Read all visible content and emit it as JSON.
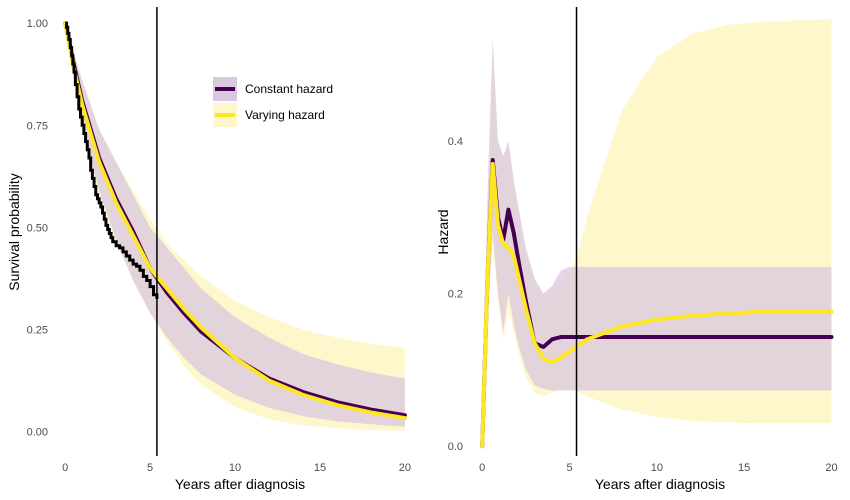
{
  "chart_data": [
    {
      "type": "line",
      "panel": "left",
      "xlabel": "Years after diagnosis",
      "ylabel": "Survival probability",
      "xlim": [
        -0.6,
        20.3
      ],
      "ylim": [
        -0.045,
        1.02
      ],
      "x_ticks": [
        0,
        5,
        10,
        15,
        20
      ],
      "x_tick_labels": [
        "0",
        "5",
        "10",
        "15",
        "20"
      ],
      "y_ticks": [
        0,
        0.25,
        0.5,
        0.75,
        1.0
      ],
      "y_tick_labels": [
        "0.00",
        "0.25",
        "0.50",
        "0.75",
        "1.00"
      ],
      "vline_x": 5.4,
      "grid": false,
      "legend": {
        "position": "top-right",
        "entries": [
          {
            "label": "Constant hazard",
            "color": "#440154",
            "fill": "#d9c8e0"
          },
          {
            "label": "Varying hazard",
            "color": "#fde725",
            "fill": "#fff7cc"
          }
        ]
      },
      "series": [
        {
          "name": "Constant hazard",
          "color": "#440154",
          "band_fill": "#d9c8e0",
          "x": [
            0,
            0.5,
            1,
            1.5,
            2,
            3,
            4,
            5,
            6,
            7,
            8,
            10,
            12,
            14,
            16,
            18,
            20
          ],
          "y": [
            1.0,
            0.9,
            0.81,
            0.74,
            0.67,
            0.57,
            0.49,
            0.4,
            0.34,
            0.29,
            0.245,
            0.18,
            0.13,
            0.097,
            0.072,
            0.054,
            0.04
          ],
          "lower": [
            1.0,
            0.87,
            0.76,
            0.67,
            0.59,
            0.47,
            0.37,
            0.29,
            0.23,
            0.18,
            0.14,
            0.09,
            0.058,
            0.038,
            0.025,
            0.018,
            0.012
          ],
          "upper": [
            1.0,
            0.93,
            0.86,
            0.8,
            0.74,
            0.66,
            0.58,
            0.5,
            0.45,
            0.4,
            0.35,
            0.28,
            0.23,
            0.19,
            0.165,
            0.145,
            0.13
          ]
        },
        {
          "name": "Varying hazard",
          "color": "#fde725",
          "band_fill": "#fff7cc",
          "x": [
            0,
            0.5,
            1,
            1.5,
            2,
            3,
            4,
            5,
            6,
            7,
            8,
            10,
            12,
            14,
            16,
            18,
            20
          ],
          "y": [
            1.0,
            0.89,
            0.8,
            0.73,
            0.66,
            0.56,
            0.48,
            0.4,
            0.35,
            0.3,
            0.255,
            0.18,
            0.125,
            0.09,
            0.065,
            0.047,
            0.033
          ],
          "lower": [
            1.0,
            0.86,
            0.75,
            0.66,
            0.58,
            0.46,
            0.37,
            0.29,
            0.22,
            0.16,
            0.115,
            0.06,
            0.03,
            0.015,
            0.008,
            0.004,
            0.002
          ],
          "upper": [
            1.0,
            0.93,
            0.86,
            0.8,
            0.74,
            0.66,
            0.59,
            0.52,
            0.46,
            0.42,
            0.38,
            0.32,
            0.28,
            0.25,
            0.23,
            0.215,
            0.205
          ]
        }
      ],
      "km_curve": {
        "color": "#000000",
        "x": [
          0,
          0.08,
          0.15,
          0.22,
          0.3,
          0.38,
          0.45,
          0.52,
          0.6,
          0.7,
          0.8,
          0.9,
          1.0,
          1.1,
          1.2,
          1.3,
          1.4,
          1.5,
          1.6,
          1.7,
          1.8,
          1.9,
          2.0,
          2.1,
          2.2,
          2.3,
          2.4,
          2.5,
          2.6,
          2.7,
          2.8,
          3.0,
          3.2,
          3.4,
          3.6,
          3.8,
          4.0,
          4.2,
          4.4,
          4.6,
          4.8,
          5.0,
          5.2,
          5.4
        ],
        "y": [
          1.0,
          0.99,
          0.975,
          0.96,
          0.94,
          0.92,
          0.9,
          0.88,
          0.85,
          0.82,
          0.79,
          0.77,
          0.75,
          0.73,
          0.71,
          0.69,
          0.67,
          0.64,
          0.62,
          0.6,
          0.58,
          0.57,
          0.56,
          0.55,
          0.535,
          0.52,
          0.505,
          0.495,
          0.485,
          0.475,
          0.465,
          0.455,
          0.45,
          0.44,
          0.43,
          0.42,
          0.41,
          0.405,
          0.395,
          0.38,
          0.37,
          0.355,
          0.335,
          0.325
        ]
      }
    },
    {
      "type": "line",
      "panel": "right",
      "xlabel": "Years after diagnosis",
      "ylabel": "Hazard",
      "xlim": [
        -0.7,
        20.2
      ],
      "ylim": [
        -0.005,
        0.565
      ],
      "x_ticks": [
        0,
        5,
        10,
        15,
        20
      ],
      "x_tick_labels": [
        "0",
        "5",
        "10",
        "15",
        "20"
      ],
      "y_ticks": [
        0.0,
        0.2,
        0.4
      ],
      "y_tick_labels": [
        "0.0",
        "0.2",
        "0.4"
      ],
      "vline_x": 5.4,
      "grid": false,
      "series": [
        {
          "name": "Constant hazard",
          "color": "#440154",
          "band_fill": "#d9c8e0",
          "x": [
            0,
            0.3,
            0.6,
            0.9,
            1.2,
            1.5,
            1.8,
            2.1,
            2.5,
            3.0,
            3.5,
            4.0,
            4.5,
            5.0,
            5.4,
            6,
            8,
            10,
            12,
            14,
            16,
            18,
            20
          ],
          "y": [
            0.0,
            0.22,
            0.375,
            0.3,
            0.27,
            0.31,
            0.28,
            0.24,
            0.19,
            0.135,
            0.13,
            0.14,
            0.143,
            0.143,
            0.143,
            0.143,
            0.143,
            0.143,
            0.143,
            0.143,
            0.143,
            0.143,
            0.143
          ],
          "lower": [
            0.0,
            0.17,
            0.28,
            0.2,
            0.15,
            0.2,
            0.16,
            0.13,
            0.1,
            0.08,
            0.075,
            0.073,
            0.073,
            0.073,
            0.073,
            0.073,
            0.073,
            0.073,
            0.073,
            0.073,
            0.073,
            0.073,
            0.073
          ],
          "upper": [
            0.0,
            0.33,
            0.535,
            0.4,
            0.38,
            0.4,
            0.35,
            0.31,
            0.26,
            0.22,
            0.2,
            0.21,
            0.23,
            0.235,
            0.235,
            0.235,
            0.235,
            0.235,
            0.235,
            0.235,
            0.235,
            0.235,
            0.235
          ]
        },
        {
          "name": "Varying hazard",
          "color": "#fde725",
          "band_fill": "#fff7cc",
          "x": [
            0,
            0.3,
            0.6,
            0.9,
            1.2,
            1.5,
            1.8,
            2.1,
            2.5,
            3.0,
            3.5,
            4.0,
            4.5,
            5.0,
            5.4,
            6,
            8,
            10,
            12,
            14,
            16,
            18,
            20
          ],
          "y": [
            0.0,
            0.22,
            0.37,
            0.29,
            0.265,
            0.26,
            0.25,
            0.22,
            0.18,
            0.135,
            0.115,
            0.11,
            0.116,
            0.124,
            0.13,
            0.14,
            0.157,
            0.166,
            0.171,
            0.174,
            0.176,
            0.176,
            0.176
          ],
          "lower": [
            0.0,
            0.17,
            0.27,
            0.19,
            0.14,
            0.18,
            0.15,
            0.12,
            0.09,
            0.07,
            0.065,
            0.07,
            0.075,
            0.075,
            0.072,
            0.065,
            0.048,
            0.038,
            0.033,
            0.031,
            0.03,
            0.03,
            0.03
          ],
          "upper": [
            0.0,
            0.3,
            0.5,
            0.4,
            0.38,
            0.39,
            0.34,
            0.3,
            0.25,
            0.215,
            0.195,
            0.2,
            0.215,
            0.23,
            0.245,
            0.3,
            0.44,
            0.51,
            0.54,
            0.552,
            0.556,
            0.558,
            0.56
          ]
        }
      ]
    }
  ]
}
